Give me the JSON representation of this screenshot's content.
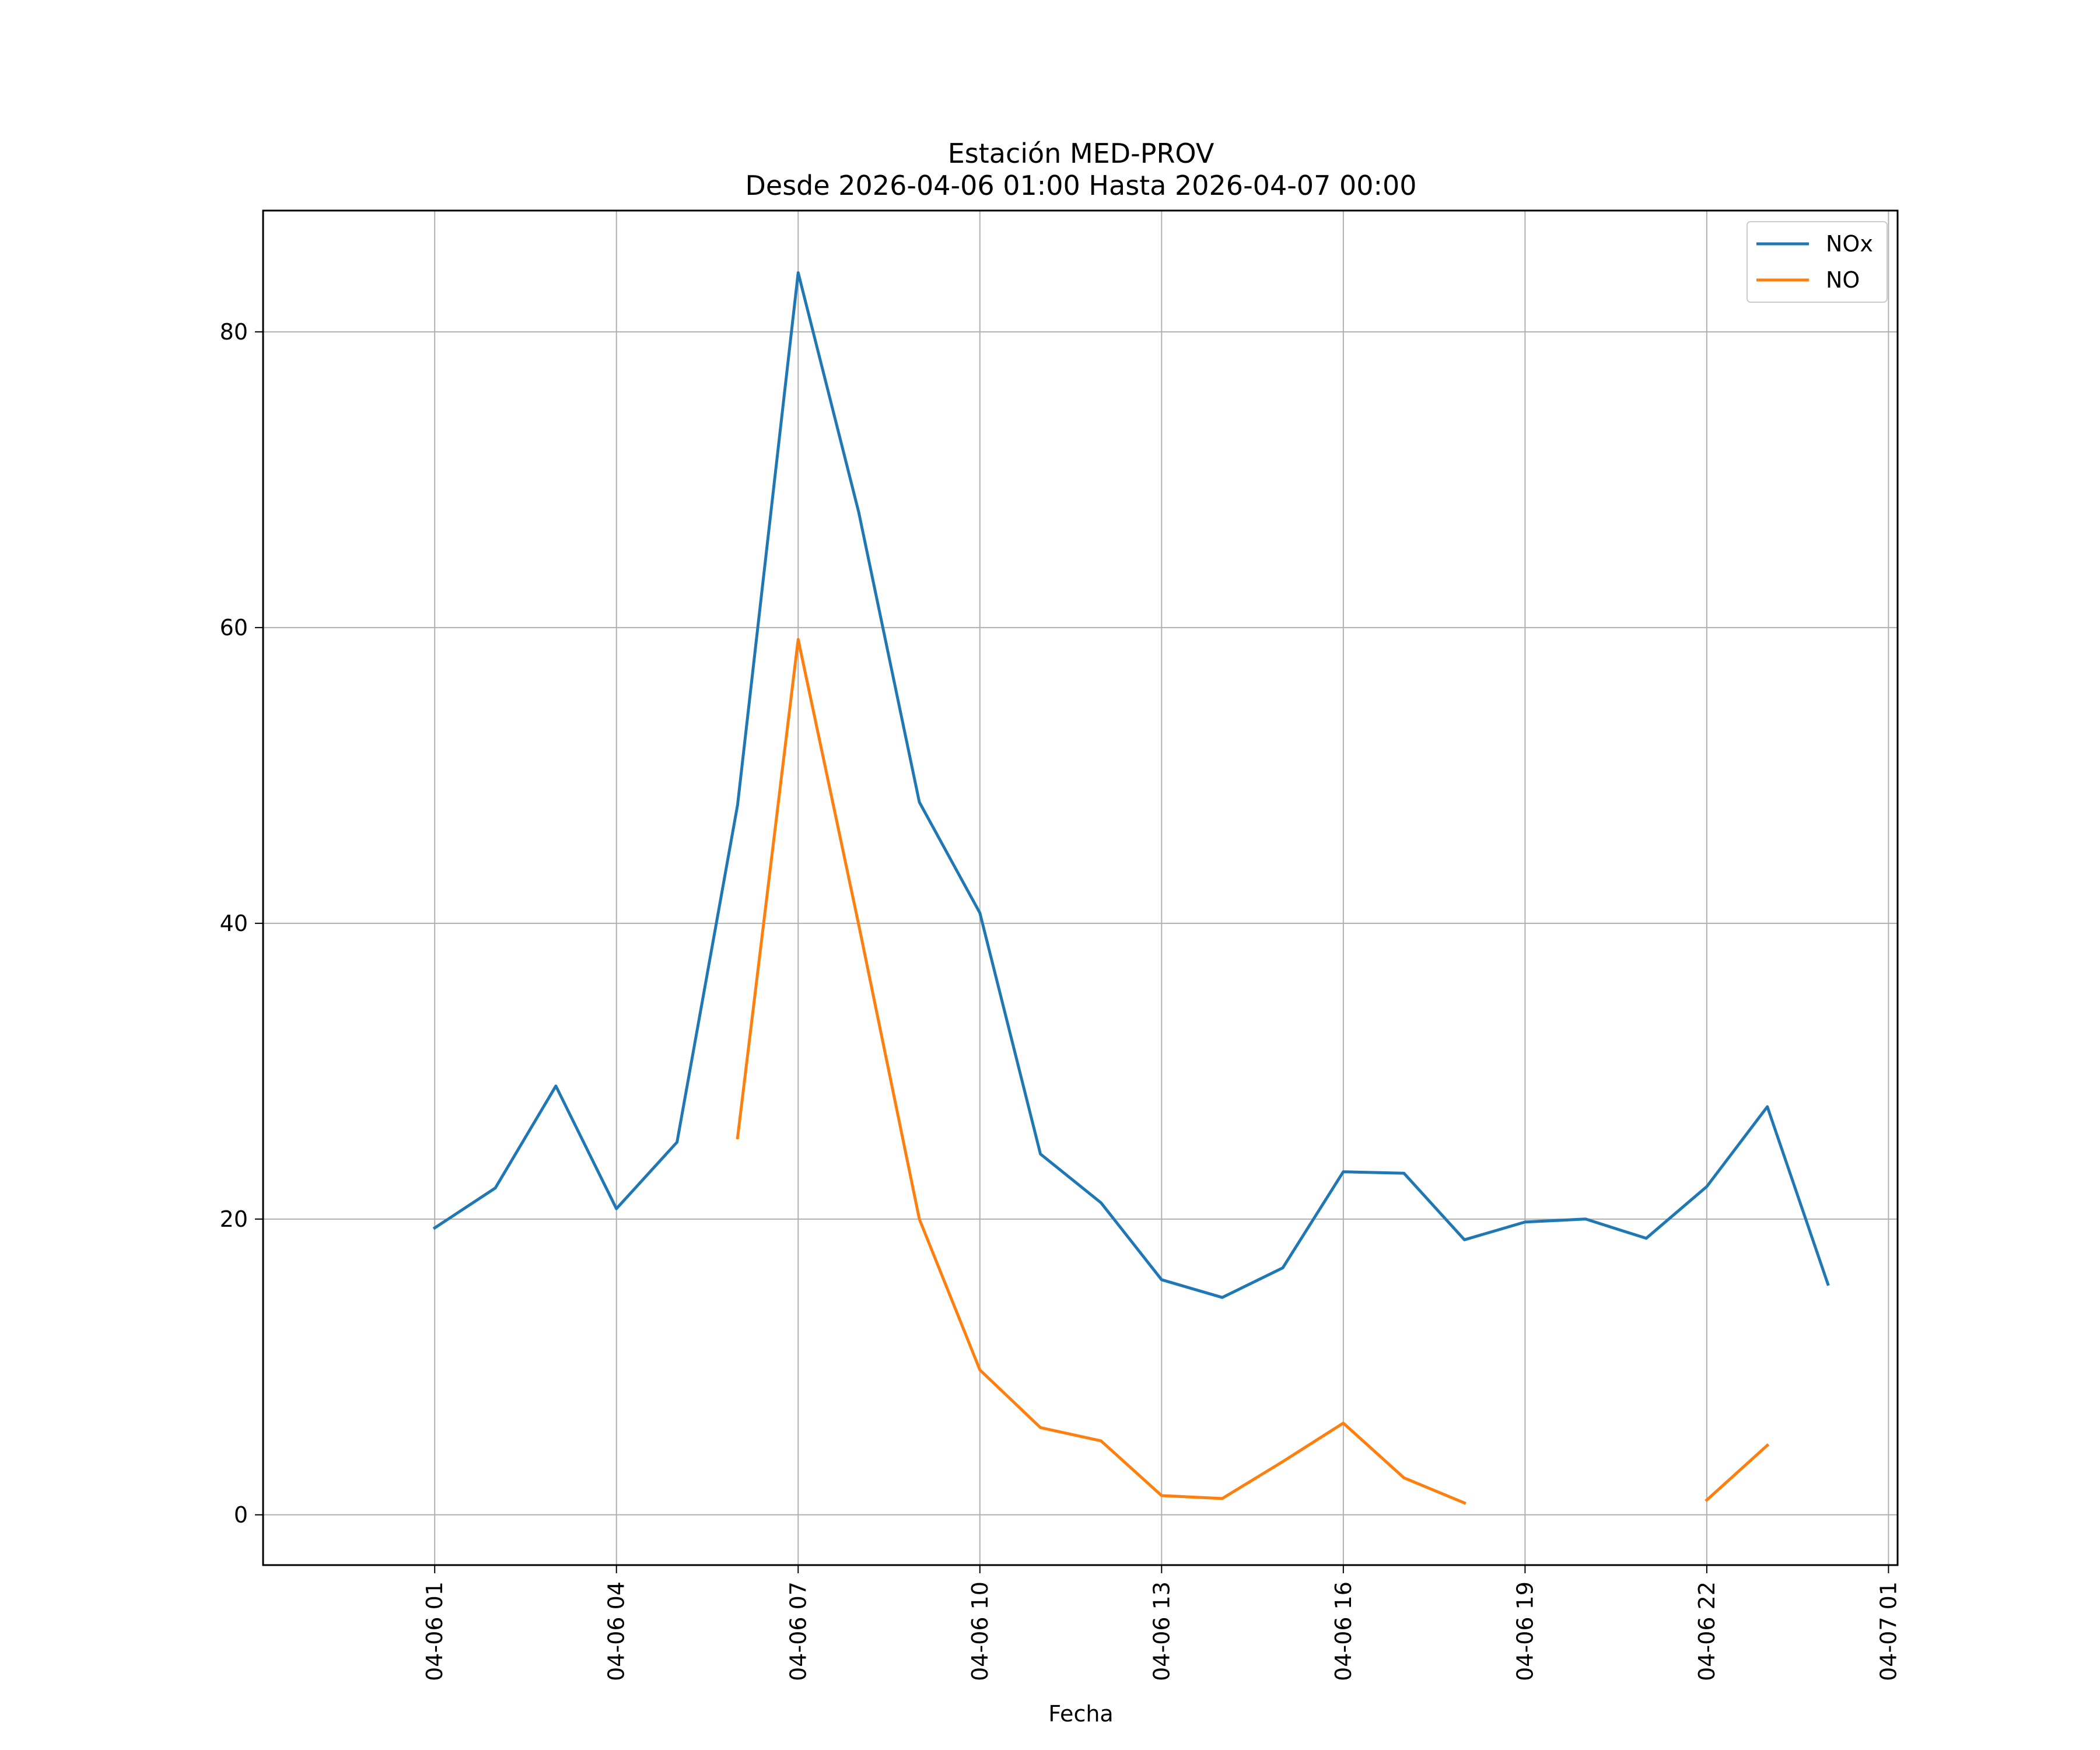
{
  "chart_data": {
    "type": "line",
    "title": "Estación MED-PROV",
    "subtitle": "Desde 2026-04-06 01:00 Hasta 2026-04-07 00:00",
    "xlabel": "Fecha",
    "ylabel": "",
    "x": [
      "2026-04-06 01:00",
      "2026-04-06 02:00",
      "2026-04-06 03:00",
      "2026-04-06 04:00",
      "2026-04-06 05:00",
      "2026-04-06 06:00",
      "2026-04-06 07:00",
      "2026-04-06 08:00",
      "2026-04-06 09:00",
      "2026-04-06 10:00",
      "2026-04-06 11:00",
      "2026-04-06 12:00",
      "2026-04-06 13:00",
      "2026-04-06 14:00",
      "2026-04-06 15:00",
      "2026-04-06 16:00",
      "2026-04-06 17:00",
      "2026-04-06 18:00",
      "2026-04-06 19:00",
      "2026-04-06 20:00",
      "2026-04-06 21:00",
      "2026-04-06 22:00",
      "2026-04-06 23:00",
      "2026-04-07 00:00"
    ],
    "series": [
      {
        "name": "NOx",
        "color": "#1f77b4",
        "values": [
          19.4,
          22.1,
          29.0,
          20.7,
          25.2,
          48.0,
          84.0,
          67.8,
          48.2,
          40.7,
          24.4,
          21.1,
          15.9,
          14.7,
          16.7,
          23.2,
          23.1,
          18.6,
          19.8,
          20.0,
          18.7,
          22.2,
          27.6,
          15.6
        ]
      },
      {
        "name": "NO",
        "color": "#ff7f0e",
        "values": [
          null,
          null,
          null,
          null,
          null,
          25.5,
          59.2,
          39.9,
          20.0,
          9.8,
          5.9,
          5.0,
          1.3,
          1.1,
          3.6,
          6.2,
          2.5,
          0.8,
          null,
          null,
          null,
          1.0,
          4.7,
          null
        ]
      }
    ],
    "xticks": [
      "04-06 01",
      "04-06 04",
      "04-06 07",
      "04-06 10",
      "04-06 13",
      "04-06 16",
      "04-06 19",
      "04-06 22",
      "04-07 01"
    ],
    "yticks": [
      0,
      20,
      40,
      60,
      80
    ],
    "ylim": [
      -3.4,
      88.2
    ],
    "xlim": [
      "2026-04-05 22:10",
      "2026-04-07 01:09"
    ],
    "grid": true,
    "legend_position": "top-right"
  }
}
